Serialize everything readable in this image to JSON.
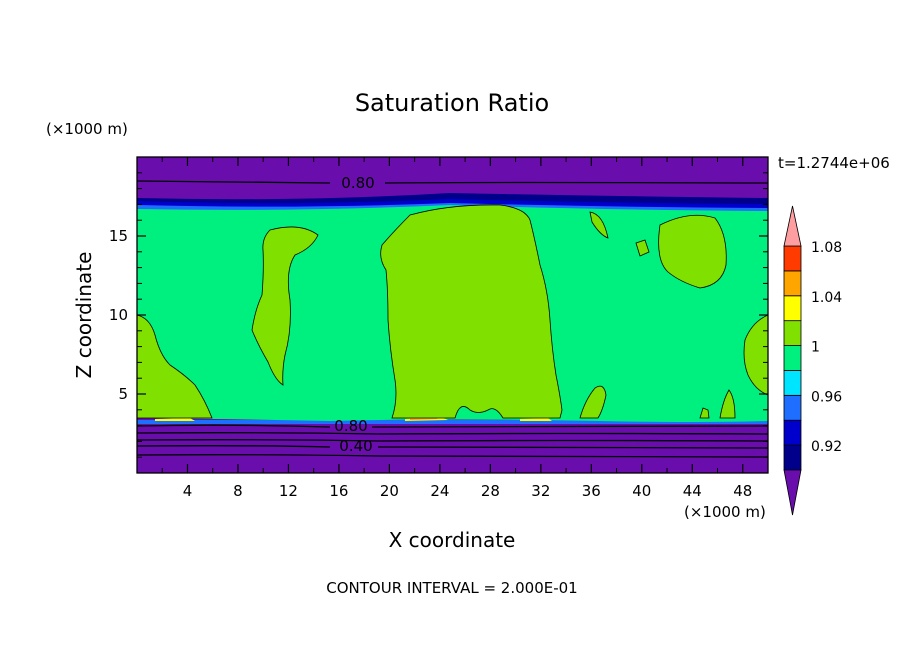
{
  "chart_data": {
    "type": "heatmap",
    "title": "Saturation Ratio",
    "xlabel": "X coordinate",
    "ylabel": "Z coordinate",
    "x_unit_label": "(×1000 m)",
    "y_unit_label": "(×1000 m)",
    "time_label": "t=1.2744e+06",
    "footer": "CONTOUR INTERVAL = 2.000E-01",
    "xlim": [
      0,
      50
    ],
    "ylim": [
      0,
      20
    ],
    "x_ticks": [
      4,
      8,
      12,
      16,
      20,
      24,
      28,
      32,
      36,
      40,
      44,
      48
    ],
    "x_tick_labels": [
      "4",
      "8",
      "12",
      "16",
      "20",
      "24",
      "28",
      "32",
      "36",
      "40",
      "44",
      "48"
    ],
    "y_ticks": [
      5,
      10,
      15
    ],
    "y_tick_labels": [
      "5",
      "10",
      "15"
    ],
    "colorbar": {
      "levels": [
        {
          "range": "<0.92",
          "color": "#6a0dad"
        },
        {
          "range": "0.92-0.94",
          "color": "#00008b"
        },
        {
          "range": "0.94-0.96",
          "color": "#0000cd"
        },
        {
          "range": "0.96-0.98",
          "color": "#1e6fff"
        },
        {
          "range": "0.98-1.00",
          "color": "#00e5ff"
        },
        {
          "range": "1.00-1.02",
          "color": "#00f080"
        },
        {
          "range": "1.02-1.04",
          "color": "#80e000"
        },
        {
          "range": "1.04-1.06",
          "color": "#ffff00"
        },
        {
          "range": "1.06-1.08",
          "color": "#ffa500"
        },
        {
          "range": "1.08-1.10",
          "color": "#ff3b00"
        },
        {
          "range": ">1.10",
          "color": "#ff9ea0"
        }
      ],
      "tick_labels": [
        "0.92",
        "0.96",
        "1",
        "1.04",
        "1.08"
      ]
    },
    "contour_labels": [
      {
        "value": "0.80",
        "x": 15.4,
        "z": 18.6
      },
      {
        "value": "0.80",
        "x": 15.6,
        "z": 3.0
      },
      {
        "value": "0.40",
        "x": 15.8,
        "z": 1.75
      }
    ],
    "regions": [
      {
        "value_range": "<0.92",
        "desc": "lower and upper purple layers"
      },
      {
        "value_range": "1.00-1.02",
        "desc": "main green band between z≈3.5 and z≈16.8"
      },
      {
        "value_range": "1.02-1.04",
        "desc": "moist lime patches (clouds)"
      }
    ]
  }
}
